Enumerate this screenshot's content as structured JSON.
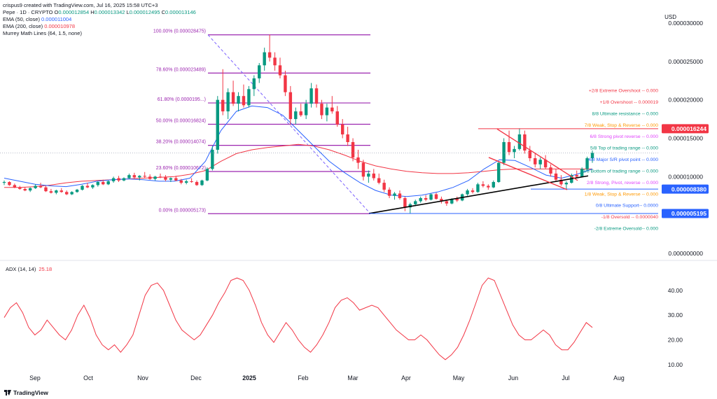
{
  "header": {
    "creator": "crispus9 created with TradingView.com, Jul 16, 2025 15:58 UTC+3",
    "symbol": "Pepe · 1D · CRYPTO",
    "ohlc": {
      "o_label": "O",
      "o": "0.000012854",
      "h_label": "H",
      "h": "0.000013342",
      "l_label": "L",
      "l": "0.000012495",
      "c_label": "C",
      "c": "0.000013146"
    },
    "ema50": {
      "label": "EMA (50, close)",
      "value": "0.000011004"
    },
    "ema200": {
      "label": "EMA (200, close)",
      "value": "0.000010978"
    },
    "murrey": {
      "label": "Murrey Math Lines (64, 1.5, none)"
    }
  },
  "currency": "USD",
  "chart_data": {
    "type": "candlestick",
    "colors": {
      "up": "#089981",
      "down": "#f23645",
      "ema50": "#2962ff",
      "ema200": "#f23645",
      "fib": "#9c27b0",
      "trend": "#000000"
    },
    "x_labels": [
      "Sep",
      "Oct",
      "Nov",
      "Dec",
      "2025",
      "Feb",
      "Mar",
      "Apr",
      "May",
      "Jun",
      "Jul",
      "Aug"
    ],
    "y_axis": {
      "scale": "linear",
      "range": [
        0.0,
        3e-05
      ],
      "ticks": [
        "0.000030000",
        "0.000025000",
        "0.000020000",
        "0.000015000",
        "0.000010000",
        "0.000005000",
        "0.000000000"
      ],
      "tick_values": [
        3e-05,
        2.5e-05,
        2e-05,
        1.5e-05,
        1e-05,
        5e-06,
        0.0
      ]
    },
    "price_badges": [
      {
        "value": "0.000016244",
        "color": "#f23645"
      },
      {
        "value": "0.000008380",
        "color": "#2962ff"
      },
      {
        "value": "0.000005195",
        "color": "#2962ff"
      }
    ],
    "fib_levels": [
      {
        "label": "100.00% (0.000028475)",
        "value": 2.8475e-05
      },
      {
        "label": "78.60% (0.000023489)",
        "value": 2.3489e-05
      },
      {
        "label": "61.80% (0.0000195...)",
        "value": 1.96e-05
      },
      {
        "label": "50.00% (0.000016824)",
        "value": 1.6824e-05
      },
      {
        "label": "38.20% (0.000014074)",
        "value": 1.4074e-05
      },
      {
        "label": "23.60% (0.000010672)",
        "value": 1.0672e-05
      },
      {
        "label": "0.00% (0.000005173)",
        "value": 5.173e-06
      }
    ],
    "murrey_lines": [
      {
        "label": "+2/8 Extreme Overshoot --  0.000",
        "color": "#f23645"
      },
      {
        "label": "+1/8 Overshoot --  0.000019",
        "color": "#f23645"
      },
      {
        "label": "8/8 Ultimate resistance --  0.000",
        "color": "#089981"
      },
      {
        "label": "7/8 Weak, Stop & Reverse --  0.000",
        "color": "#ff9800"
      },
      {
        "label": "6/8 Strong pivot reverse --  0.000",
        "color": "#e040fb"
      },
      {
        "label": "5/8 Top of trading range --  0.000",
        "color": "#089981"
      },
      {
        "label": "4/8 Major S/R pivot point --  0.000",
        "color": "#2962ff"
      },
      {
        "label": "3/8 Bottom of trading range --  0.000",
        "color": "#089981"
      },
      {
        "label": "2/8 Strong, Pivot, reverse --  0.000",
        "color": "#e040fb"
      },
      {
        "label": "1/8 Weak, Stop & Reverse --  0.000",
        "color": "#ff9800"
      },
      {
        "label": "0/8 Ultimate Support--  0.0000",
        "color": "#2962ff"
      },
      {
        "label": "-1/8 Oversold --  0.0000040",
        "color": "#f23645"
      },
      {
        "label": "-2/8 Extreme Oversold--  0.000",
        "color": "#089981"
      }
    ],
    "candles": [
      [
        9.2e-06,
        9.5e-06,
        8.9e-06,
        9.3e-06
      ],
      [
        9.3e-06,
        9.4e-06,
        8.8e-06,
        8.9e-06
      ],
      [
        8.9e-06,
        9.1e-06,
        8.5e-06,
        8.6e-06
      ],
      [
        8.6e-06,
        8.8e-06,
        8.3e-06,
        8.4e-06
      ],
      [
        8.4e-06,
        8.6e-06,
        8.1e-06,
        8.2e-06
      ],
      [
        8.2e-06,
        8.6e-06,
        8e-06,
        8.5e-06
      ],
      [
        8.5e-06,
        9e-06,
        8.4e-06,
        8.8e-06
      ],
      [
        8.8e-06,
        9.2e-06,
        8.5e-06,
        8.6e-06
      ],
      [
        8.6e-06,
        8.8e-06,
        8e-06,
        8.1e-06
      ],
      [
        8.1e-06,
        8.4e-06,
        7.8e-06,
        7.9e-06
      ],
      [
        7.9e-06,
        8.3e-06,
        7.7e-06,
        8.2e-06
      ],
      [
        8.2e-06,
        8.5e-06,
        7.9e-06,
        8e-06
      ],
      [
        8e-06,
        8.2e-06,
        7.6e-06,
        7.7e-06
      ],
      [
        7.7e-06,
        8.1e-06,
        7.6e-06,
        8e-06
      ],
      [
        8e-06,
        8.4e-06,
        7.9e-06,
        8.3e-06
      ],
      [
        8.3e-06,
        8.9e-06,
        8.2e-06,
        8.8e-06
      ],
      [
        8.8e-06,
        9.2e-06,
        8.5e-06,
        8.6e-06
      ],
      [
        8.6e-06,
        9e-06,
        8.4e-06,
        8.9e-06
      ],
      [
        8.9e-06,
        9.4e-06,
        8.7e-06,
        9.3e-06
      ],
      [
        9.3e-06,
        9.6e-06,
        8.9e-06,
        9e-06
      ],
      [
        9e-06,
        9.5e-06,
        8.9e-06,
        9.4e-06
      ],
      [
        9.4e-06,
        1e-05,
        9.2e-06,
        9.8e-06
      ],
      [
        9.8e-06,
        1.01e-05,
        9.3e-06,
        9.5e-06
      ],
      [
        9.5e-06,
        9.9e-06,
        9.4e-06,
        9.8e-06
      ],
      [
        9.8e-06,
        1.04e-05,
        9.7e-06,
        1.02e-05
      ],
      [
        1.02e-05,
        1.05e-05,
        9.7e-06,
        9.9e-06
      ],
      [
        9.9e-06,
        1.02e-05,
        9.5e-06,
        1.01e-05
      ],
      [
        1.01e-05,
        1.06e-05,
        9.8e-06,
        1e-05
      ],
      [
        1e-05,
        1.03e-05,
        9.6e-06,
        9.7e-06
      ],
      [
        9.7e-06,
        1.01e-05,
        9.5e-06,
        1e-05
      ],
      [
        1e-05,
        1.04e-05,
        9.8e-06,
        9.9e-06
      ],
      [
        9.9e-06,
        1.02e-05,
        9.4e-06,
        9.6e-06
      ],
      [
        9.6e-06,
        9.9e-06,
        9.3e-06,
        9.8e-06
      ],
      [
        9.8e-06,
        1.01e-05,
        9.4e-06,
        9.5e-06
      ],
      [
        9.5e-06,
        9.7e-06,
        9e-06,
        9.2e-06
      ],
      [
        9.2e-06,
        9.6e-06,
        9e-06,
        9.4e-06
      ],
      [
        9.4e-06,
        9.8e-06,
        9.2e-06,
        9.3e-06
      ],
      [
        9.3e-06,
        9.5e-06,
        8.8e-06,
        8.9e-06
      ],
      [
        8.9e-06,
        9.6e-06,
        8.8e-06,
        9.5e-06
      ],
      [
        9.5e-06,
        1.12e-05,
        9.4e-06,
        1.1e-05
      ],
      [
        1.1e-05,
        1.4e-05,
        1.08e-05,
        1.35e-05
      ],
      [
        1.35e-05,
        2.05e-05,
        1.3e-05,
        2e-05
      ],
      [
        2e-05,
        2.4e-05,
        1.8e-05,
        1.85e-05
      ],
      [
        1.85e-05,
        2.15e-05,
        1.75e-05,
        2.1e-05
      ],
      [
        2.1e-05,
        2.25e-05,
        1.92e-05,
        1.95e-05
      ],
      [
        1.95e-05,
        2.1e-05,
        1.85e-05,
        2.05e-05
      ],
      [
        2.05e-05,
        2.2e-05,
        1.9e-05,
        1.93e-05
      ],
      [
        1.93e-05,
        2.18e-05,
        1.9e-05,
        2.14e-05
      ],
      [
        2.14e-05,
        2.32e-05,
        2.05e-05,
        2.28e-05
      ],
      [
        2.28e-05,
        2.48e-05,
        2.22e-05,
        2.45e-05
      ],
      [
        2.45e-05,
        2.68e-05,
        2.38e-05,
        2.62e-05
      ],
      [
        2.62e-05,
        2.85e-05,
        2.5e-05,
        2.55e-05
      ],
      [
        2.55e-05,
        2.62e-05,
        2.38e-05,
        2.45e-05
      ],
      [
        2.45e-05,
        2.55e-05,
        2.28e-05,
        2.32e-05
      ],
      [
        2.32e-05,
        2.38e-05,
        2.05e-05,
        2.1e-05
      ],
      [
        2.1e-05,
        2.18e-05,
        1.68e-05,
        1.75e-05
      ],
      [
        1.75e-05,
        1.9e-05,
        1.68e-05,
        1.85e-05
      ],
      [
        1.85e-05,
        1.95e-05,
        1.78e-05,
        1.8e-05
      ],
      [
        1.8e-05,
        2e-05,
        1.75e-05,
        1.95e-05
      ],
      [
        1.95e-05,
        2.22e-05,
        1.9e-05,
        2.15e-05
      ],
      [
        2.15e-05,
        2.2e-05,
        1.9e-05,
        1.95e-05
      ],
      [
        1.95e-05,
        2e-05,
        1.75e-05,
        1.8e-05
      ],
      [
        1.8e-05,
        1.95e-05,
        1.72e-05,
        1.9e-05
      ],
      [
        1.9e-05,
        2.05e-05,
        1.82e-05,
        1.85e-05
      ],
      [
        1.85e-05,
        1.92e-05,
        1.65e-05,
        1.68e-05
      ],
      [
        1.68e-05,
        1.75e-05,
        1.5e-05,
        1.55e-05
      ],
      [
        1.55e-05,
        1.65e-05,
        1.4e-05,
        1.45e-05
      ],
      [
        1.45e-05,
        1.5e-05,
        1.2e-05,
        1.25e-05
      ],
      [
        1.25e-05,
        1.35e-05,
        1.1e-05,
        1.18e-05
      ],
      [
        1.18e-05,
        1.22e-05,
        9.5e-06,
        1e-05
      ],
      [
        1e-05,
        1.08e-05,
        9.2e-06,
        1.04e-05
      ],
      [
        1.04e-05,
        1.1e-05,
        9.5e-06,
        9.8e-06
      ],
      [
        9.8e-06,
        1.04e-05,
        9e-06,
        9.2e-06
      ],
      [
        9.2e-06,
        9.6e-06,
        8e-06,
        8.3e-06
      ],
      [
        8.3e-06,
        8.6e-06,
        7.2e-06,
        7.5e-06
      ],
      [
        7.5e-06,
        8e-06,
        7e-06,
        7.8e-06
      ],
      [
        7.8e-06,
        8.2e-06,
        7e-06,
        7.2e-06
      ],
      [
        7.2e-06,
        7.4e-06,
        5.5e-06,
        6e-06
      ],
      [
        6e-06,
        6.6e-06,
        5.2e-06,
        6.4e-06
      ],
      [
        6.4e-06,
        7e-06,
        6.2e-06,
        6.8e-06
      ],
      [
        6.8e-06,
        7.4e-06,
        6.6e-06,
        7.2e-06
      ],
      [
        7.2e-06,
        7.6e-06,
        6.8e-06,
        7e-06
      ],
      [
        7e-06,
        7.8e-06,
        6.9e-06,
        7.7e-06
      ],
      [
        7.7e-06,
        7.9e-06,
        7e-06,
        7.1e-06
      ],
      [
        7.1e-06,
        7.4e-06,
        6.5e-06,
        6.8e-06
      ],
      [
        6.8e-06,
        7e-06,
        6.2e-06,
        6.5e-06
      ],
      [
        6.5e-06,
        7.2e-06,
        6.4e-06,
        7.1e-06
      ],
      [
        7.1e-06,
        7.4e-06,
        6.7e-06,
        6.9e-06
      ],
      [
        6.9e-06,
        7.8e-06,
        6.8e-06,
        7.7e-06
      ],
      [
        7.7e-06,
        8.4e-06,
        7.5e-06,
        8.2e-06
      ],
      [
        8.2e-06,
        8.5e-06,
        7.8e-06,
        8e-06
      ],
      [
        8e-06,
        9.2e-06,
        7.9e-06,
        9e-06
      ],
      [
        9e-06,
        9.4e-06,
        8.6e-06,
        8.8e-06
      ],
      [
        8.8e-06,
        9e-06,
        8.3e-06,
        8.6e-06
      ],
      [
        8.6e-06,
        9.5e-06,
        8.5e-06,
        9.3e-06
      ],
      [
        9.3e-06,
        1.2e-05,
        9.2e-06,
        1.18e-05
      ],
      [
        1.18e-05,
        1.5e-05,
        1.15e-05,
        1.45e-05
      ],
      [
        1.45e-05,
        1.6e-05,
        1.28e-05,
        1.32e-05
      ],
      [
        1.32e-05,
        1.4e-05,
        1.24e-05,
        1.36e-05
      ],
      [
        1.36e-05,
        1.63e-05,
        1.34e-05,
        1.55e-05
      ],
      [
        1.55e-05,
        1.6e-05,
        1.3e-05,
        1.34e-05
      ],
      [
        1.34e-05,
        1.4e-05,
        1.2e-05,
        1.24e-05
      ],
      [
        1.24e-05,
        1.3e-05,
        1.12e-05,
        1.16e-05
      ],
      [
        1.16e-05,
        1.25e-05,
        1.1e-05,
        1.22e-05
      ],
      [
        1.22e-05,
        1.28e-05,
        1.1e-05,
        1.12e-05
      ],
      [
        1.12e-05,
        1.16e-05,
        1e-05,
        1.04e-05
      ],
      [
        1.04e-05,
        1.1e-05,
        9.4e-06,
        9.6e-06
      ],
      [
        9.6e-06,
        1.02e-05,
        8.8e-06,
        9e-06
      ],
      [
        9e-06,
        9.4e-06,
        8.4e-06,
        9.2e-06
      ],
      [
        9.2e-06,
        1.04e-05,
        9.1e-06,
        1.02e-05
      ],
      [
        1.02e-05,
        1.08e-05,
        9.8e-06,
        1e-05
      ],
      [
        1e-05,
        1.12e-05,
        9.9e-06,
        1.1e-05
      ],
      [
        1.1e-05,
        1.26e-05,
        1.08e-05,
        1.24e-05
      ],
      [
        1.24e-05,
        1.34e-05,
        1.18e-05,
        1.31e-05
      ]
    ],
    "ema50": [
      9.8e-06,
      9.4e-06,
      9e-06,
      8.8e-06,
      8.7e-06,
      9e-06,
      9.4e-06,
      9.6e-06,
      9.7e-06,
      9.6e-06,
      9.4e-06,
      9.4e-06,
      9.8e-06,
      1.2e-05,
      1.6e-05,
      1.85e-05,
      1.92e-05,
      1.9e-05,
      1.8e-05,
      1.6e-05,
      1.4e-05,
      1.2e-05,
      1.05e-05,
      9.2e-06,
      8.2e-06,
      7.6e-06,
      7.4e-06,
      7.6e-06,
      8e-06,
      8.6e-06,
      9.5e-06,
      1.1e-05,
      1.22e-05,
      1.21e-05,
      1.12e-05,
      1.02e-05,
      9.8e-06,
      1.03e-05,
      1.1e-05
    ],
    "ema200": [
      8.6e-06,
      8.6e-06,
      8.7e-06,
      8.9e-06,
      9.2e-06,
      9.4e-06,
      9.5e-06,
      9.6e-06,
      9.7e-06,
      9.8e-06,
      9.9e-06,
      1e-05,
      1.03e-05,
      1.08e-05,
      1.2e-05,
      1.3e-05,
      1.35e-05,
      1.38e-05,
      1.4e-05,
      1.42e-05,
      1.4e-05,
      1.35e-05,
      1.28e-05,
      1.2e-05,
      1.14e-05,
      1.1e-05,
      1.07e-05,
      1.05e-05,
      1.04e-05,
      1.04e-05,
      1.05e-05,
      1.07e-05,
      1.09e-05,
      1.1e-05,
      1.1e-05,
      1.1e-05,
      1.1e-05,
      1.1e-05,
      1.1e-05
    ],
    "adx": {
      "label": "ADX (14, 14)",
      "value": "25.18",
      "color": "#f23645",
      "range": [
        8,
        47
      ],
      "ticks": [
        "40.00",
        "30.00",
        "20.00",
        "10.00"
      ],
      "tick_values": [
        40,
        30,
        20,
        10
      ],
      "series": [
        29,
        33,
        35,
        31,
        25,
        22,
        24,
        28,
        25,
        22,
        20,
        24,
        30,
        34,
        29,
        22,
        18,
        16,
        18,
        15,
        18,
        22,
        30,
        38,
        42,
        43,
        40,
        34,
        28,
        24,
        22,
        20,
        22,
        26,
        30,
        35,
        39,
        44,
        45,
        44,
        40,
        34,
        27,
        22,
        19,
        23,
        27,
        24,
        20,
        17,
        15,
        18,
        22,
        27,
        33,
        36,
        37,
        35,
        32,
        33,
        34,
        33,
        30,
        27,
        24,
        22,
        20,
        20,
        22,
        20,
        17,
        14,
        12,
        14,
        17,
        22,
        28,
        35,
        42,
        45,
        44,
        38,
        32,
        26,
        22,
        20,
        20,
        22,
        24,
        22,
        18,
        16,
        16,
        19,
        23,
        27,
        25
      ]
    }
  },
  "footer": {
    "brand": "TradingView"
  }
}
